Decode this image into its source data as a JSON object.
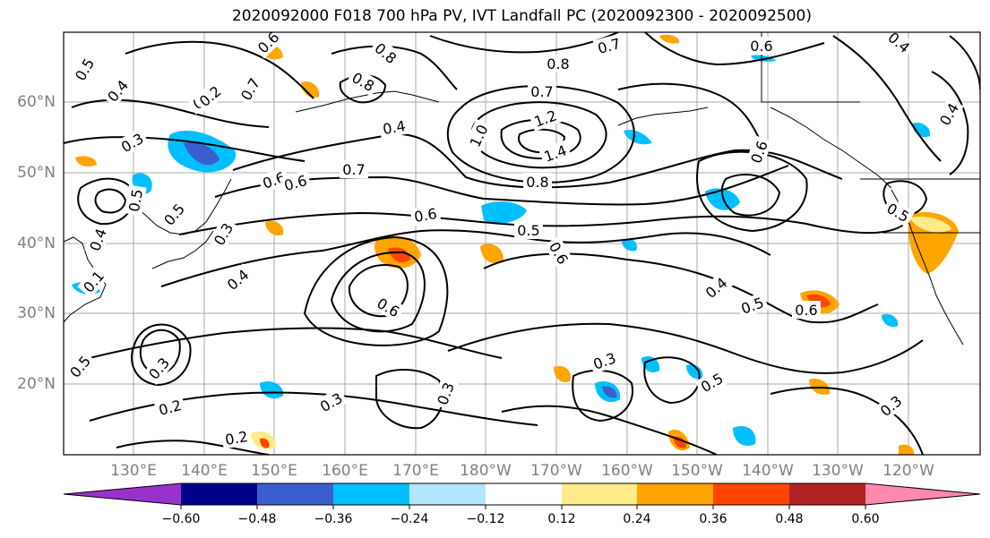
{
  "title": "2020092000 F018 700 hPa PV, IVT Landfall PC (2020092300 - 2020092500)",
  "map": {
    "lat_labels": [
      "60°N",
      "50°N",
      "40°N",
      "30°N",
      "20°N"
    ],
    "lon_labels": [
      "130°E",
      "140°E",
      "150°E",
      "160°E",
      "170°E",
      "180°W",
      "170°W",
      "160°W",
      "150°W",
      "140°W",
      "130°W",
      "120°W"
    ],
    "contour_labels": [
      "0.5",
      "0.4",
      "0.3",
      "0.5",
      "0.4",
      "0.7",
      "0.6",
      "0.8",
      "0.4",
      "0.8",
      "0.6",
      "0.7",
      "0.4",
      "1.0",
      "1.2",
      "1.4",
      "0.8",
      "0.7",
      "0.6",
      "0.4",
      "0.5",
      "0.6",
      "0.7",
      "0.8",
      "0.5",
      "0.6",
      "0.5",
      "0.5",
      "0.6",
      "0.4",
      "0.6",
      "0.4",
      "0.5",
      "0.6",
      "0.3",
      "0.6",
      "0.3",
      "0.2",
      "0.3",
      "0.3",
      "0.3",
      "0.5",
      "0.2",
      "0.3",
      "0.2",
      "0.4",
      "0.1"
    ]
  },
  "colorbar": {
    "ticks": [
      "−0.60",
      "−0.48",
      "−0.36",
      "−0.24",
      "−0.12",
      "0.12",
      "0.24",
      "0.36",
      "0.48",
      "0.60"
    ],
    "colors": [
      "#9932cc",
      "#00008b",
      "#3a5fcd",
      "#00bfff",
      "#b3e5fc",
      "#ffffff",
      "#ffeb8a",
      "#ffa500",
      "#ff4500",
      "#b22222",
      "#ff88b0"
    ]
  }
}
